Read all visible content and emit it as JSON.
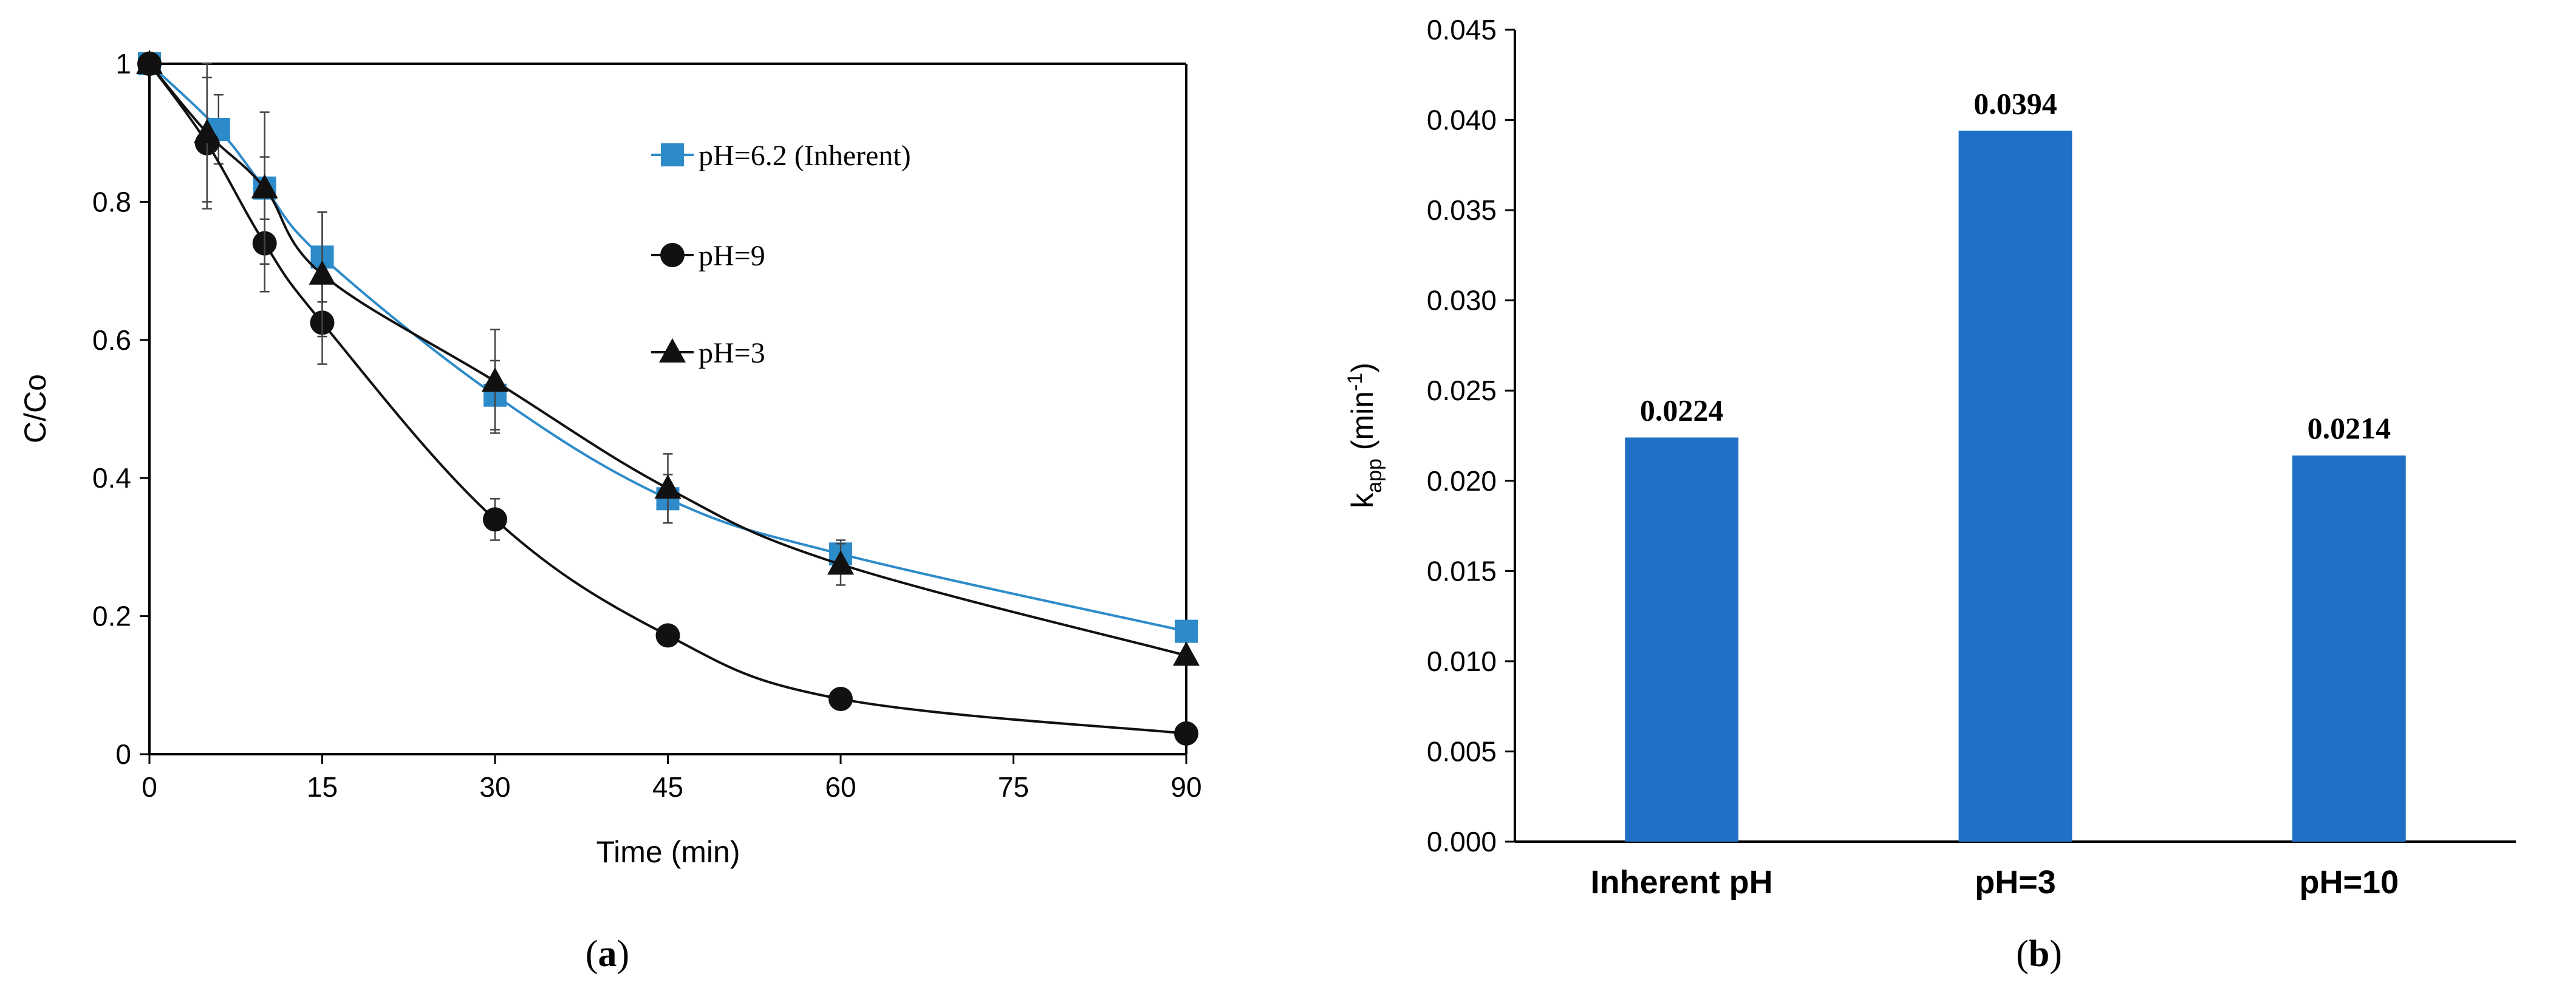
{
  "charts": [
    {
      "type": "line",
      "panel_label": {
        "open": "(",
        "letter": "a",
        "close": ")"
      },
      "xlabel": "Time (min)",
      "ylabel": "C/Co",
      "xlim": [
        0,
        90
      ],
      "ylim": [
        0,
        1
      ],
      "xticks": [
        0,
        15,
        30,
        45,
        60,
        75,
        90
      ],
      "yticks": [
        0,
        0.2,
        0.4,
        0.6,
        0.8,
        1
      ],
      "ytick_labels": [
        "0",
        "0.2",
        "0.4",
        "0.6",
        "0.8",
        "1"
      ],
      "legend_position": "top-right",
      "series": [
        {
          "name": "pH=6.2 (Inherent)",
          "color": "#2E8BC9",
          "marker": "square",
          "x": [
            0,
            6,
            10,
            15,
            30,
            45,
            60,
            90
          ],
          "y": [
            1.0,
            0.905,
            0.82,
            0.72,
            0.52,
            0.37,
            0.29,
            0.178
          ],
          "err": [
            0.0,
            0.05,
            0.045,
            0.065,
            0.05,
            0.035,
            0.02,
            0.0
          ]
        },
        {
          "name": "pH=9",
          "color": "#111111",
          "marker": "circle",
          "x": [
            0,
            5,
            10,
            15,
            30,
            45,
            60,
            90
          ],
          "y": [
            1.0,
            0.885,
            0.74,
            0.625,
            0.34,
            0.172,
            0.08,
            0.03
          ],
          "err": [
            0.0,
            0.095,
            0.07,
            0.06,
            0.03,
            0.0,
            0.0,
            0.0
          ]
        },
        {
          "name": "pH=3",
          "color": "#111111",
          "marker": "triangle",
          "x": [
            0,
            5,
            10,
            15,
            30,
            45,
            60,
            90
          ],
          "y": [
            1.0,
            0.9,
            0.82,
            0.695,
            0.54,
            0.385,
            0.275,
            0.143
          ],
          "err": [
            0.0,
            0.1,
            0.11,
            0.09,
            0.075,
            0.05,
            0.03,
            0.0
          ]
        }
      ]
    },
    {
      "type": "bar",
      "panel_label": {
        "open": "(",
        "letter": "b",
        "close": ")"
      },
      "xlabel": "",
      "ylabel": {
        "main": "k",
        "sub": "app",
        "unit_open": " (min",
        "unit_sup": "-1",
        "unit_close": ")"
      },
      "ylim": [
        0,
        0.045
      ],
      "yticks": [
        0,
        0.005,
        0.01,
        0.015,
        0.02,
        0.025,
        0.03,
        0.035,
        0.04,
        0.045
      ],
      "ytick_labels": [
        "0.000",
        "0.005",
        "0.010",
        "0.015",
        "0.020",
        "0.025",
        "0.030",
        "0.035",
        "0.040",
        "0.045"
      ],
      "categories": [
        "Inherent pH",
        "pH=3",
        "pH=10"
      ],
      "values": [
        0.0224,
        0.0394,
        0.0214
      ],
      "data_labels": [
        "0.0224",
        "0.0394",
        "0.0214"
      ],
      "bar_color": "#1F70C6",
      "grid": false
    }
  ]
}
